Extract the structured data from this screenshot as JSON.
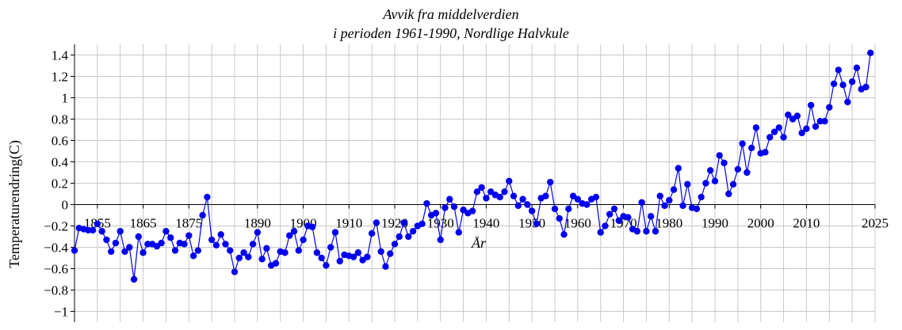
{
  "chart_data": {
    "type": "line",
    "title_lines": [
      "Avvik fra middelverdien",
      "i perioden 1961-1990, Nordlige Halvkule"
    ],
    "xlabel": "År",
    "ylabel": "Temperaturendring(C)",
    "xlim": [
      1850,
      2025
    ],
    "ylim": [
      -1.1,
      1.5
    ],
    "x_ticks": [
      1855,
      1865,
      1875,
      1890,
      1900,
      1910,
      1920,
      1930,
      1940,
      1950,
      1960,
      1970,
      1980,
      1990,
      2000,
      2010,
      2025
    ],
    "x_tick_labels": [
      "1855",
      "1865",
      "1875",
      "1890",
      "1900",
      "1910",
      "1920",
      "1930",
      "1940",
      "1950",
      "1960",
      "1970",
      "1980",
      "1990",
      "2000",
      "2010",
      "2025"
    ],
    "y_ticks": [
      1.4,
      1.2,
      1,
      0.8,
      0.6,
      0.4,
      0.2,
      0,
      -0.2,
      -0.4,
      -0.6,
      -0.8,
      -1
    ],
    "y_tick_labels": [
      "1.4",
      "1.2",
      "1",
      "0.8",
      "0.6",
      "0.4",
      "0.2",
      "0",
      "−0.2",
      "−0.4",
      "−0.6",
      "−0.8",
      "−1"
    ],
    "grid": true,
    "series_color": "#0000ee",
    "x": [
      1850,
      1851,
      1852,
      1853,
      1854,
      1855,
      1856,
      1857,
      1858,
      1859,
      1860,
      1861,
      1862,
      1863,
      1864,
      1865,
      1866,
      1867,
      1868,
      1869,
      1870,
      1871,
      1872,
      1873,
      1874,
      1875,
      1876,
      1877,
      1878,
      1879,
      1880,
      1881,
      1882,
      1883,
      1884,
      1885,
      1886,
      1887,
      1888,
      1889,
      1890,
      1891,
      1892,
      1893,
      1894,
      1895,
      1896,
      1897,
      1898,
      1899,
      1900,
      1901,
      1902,
      1903,
      1904,
      1905,
      1906,
      1907,
      1908,
      1909,
      1910,
      1911,
      1912,
      1913,
      1914,
      1915,
      1916,
      1917,
      1918,
      1919,
      1920,
      1921,
      1922,
      1923,
      1924,
      1925,
      1926,
      1927,
      1928,
      1929,
      1930,
      1931,
      1932,
      1933,
      1934,
      1935,
      1936,
      1937,
      1938,
      1939,
      1940,
      1941,
      1942,
      1943,
      1944,
      1945,
      1946,
      1947,
      1948,
      1949,
      1950,
      1951,
      1952,
      1953,
      1954,
      1955,
      1956,
      1957,
      1958,
      1959,
      1960,
      1961,
      1962,
      1963,
      1964,
      1965,
      1966,
      1967,
      1968,
      1969,
      1970,
      1971,
      1972,
      1973,
      1974,
      1975,
      1976,
      1977,
      1978,
      1979,
      1980,
      1981,
      1982,
      1983,
      1984,
      1985,
      1986,
      1987,
      1988,
      1989,
      1990,
      1991,
      1992,
      1993,
      1994,
      1995,
      1996,
      1997,
      1998,
      1999,
      2000,
      2001,
      2002,
      2003,
      2004,
      2005,
      2006,
      2007,
      2008,
      2009,
      2010,
      2011,
      2012,
      2013,
      2014,
      2015,
      2016,
      2017,
      2018,
      2019,
      2020,
      2021,
      2022,
      2023,
      2024
    ],
    "y": [
      -0.43,
      -0.22,
      -0.23,
      -0.24,
      -0.24,
      -0.18,
      -0.25,
      -0.33,
      -0.44,
      -0.36,
      -0.25,
      -0.44,
      -0.4,
      -0.7,
      -0.3,
      -0.45,
      -0.37,
      -0.37,
      -0.39,
      -0.36,
      -0.25,
      -0.31,
      -0.43,
      -0.36,
      -0.37,
      -0.29,
      -0.48,
      -0.43,
      -0.1,
      0.07,
      -0.33,
      -0.38,
      -0.28,
      -0.37,
      -0.43,
      -0.63,
      -0.5,
      -0.45,
      -0.49,
      -0.37,
      -0.26,
      -0.51,
      -0.41,
      -0.57,
      -0.55,
      -0.44,
      -0.45,
      -0.29,
      -0.25,
      -0.43,
      -0.33,
      -0.2,
      -0.21,
      -0.45,
      -0.5,
      -0.57,
      -0.4,
      -0.26,
      -0.53,
      -0.47,
      -0.48,
      -0.49,
      -0.45,
      -0.52,
      -0.49,
      -0.27,
      -0.17,
      -0.44,
      -0.58,
      -0.46,
      -0.37,
      -0.3,
      -0.17,
      -0.3,
      -0.25,
      -0.2,
      -0.18,
      0.01,
      -0.1,
      -0.08,
      -0.33,
      -0.03,
      0.05,
      -0.02,
      -0.26,
      -0.05,
      -0.08,
      -0.06,
      0.12,
      0.16,
      0.06,
      0.12,
      0.09,
      0.07,
      0.12,
      0.22,
      0.08,
      -0.01,
      0.05,
      0.0,
      -0.06,
      -0.18,
      0.06,
      0.08,
      0.21,
      -0.04,
      -0.13,
      -0.28,
      -0.04,
      0.08,
      0.05,
      0.01,
      0.0,
      0.05,
      0.07,
      -0.26,
      -0.2,
      -0.09,
      -0.04,
      -0.15,
      -0.11,
      -0.12,
      -0.23,
      -0.25,
      0.02,
      -0.25,
      -0.11,
      -0.25,
      0.08,
      -0.01,
      0.04,
      0.14,
      0.34,
      -0.01,
      0.19,
      -0.03,
      -0.04,
      0.07,
      0.2,
      0.32,
      0.22,
      0.46,
      0.39,
      0.1,
      0.19,
      0.33,
      0.57,
      0.3,
      0.53,
      0.72,
      0.48,
      0.49,
      0.63,
      0.68,
      0.72,
      0.63,
      0.84,
      0.8,
      0.83,
      0.67,
      0.71,
      0.93,
      0.73,
      0.78,
      0.78,
      0.91,
      1.13,
      1.26,
      1.12,
      0.96,
      1.15,
      1.28,
      1.08,
      1.1,
      1.42
    ]
  }
}
